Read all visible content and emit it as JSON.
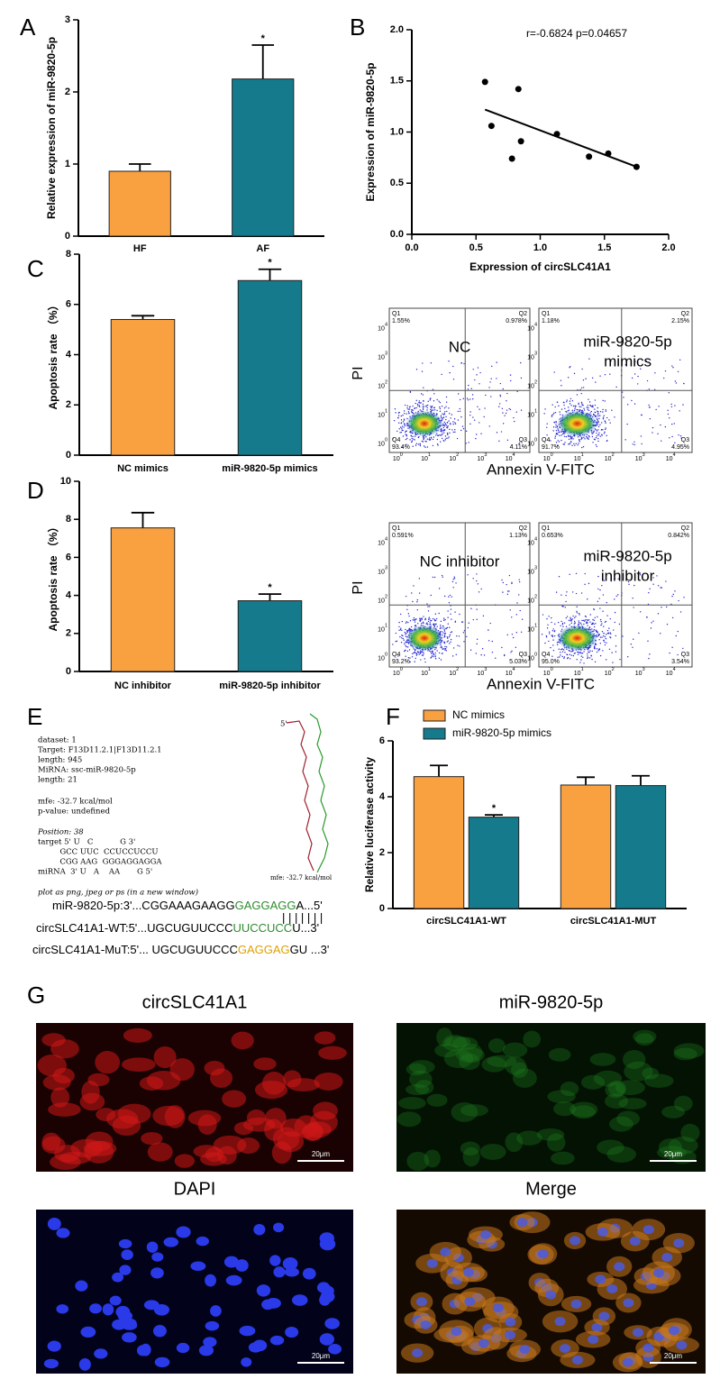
{
  "chart_data": [
    {
      "type": "bar",
      "y_label": "Relative expression of miR-9820-5p",
      "categories": [
        "HF",
        "AF"
      ],
      "values": [
        0.9,
        2.18
      ],
      "errors": [
        0.1,
        0.47
      ],
      "value_annotations": [
        null,
        "*"
      ],
      "colors": [
        "#f9a040",
        "#157a8b"
      ],
      "ylim": [
        0,
        3
      ],
      "yticks": [
        0,
        1,
        2,
        3
      ]
    },
    {
      "type": "scatter",
      "annotation": "r=-0.6824 p=0.04657",
      "x_label": "Expression of circSLC41A1",
      "y_label": "Expression of miR-9820-5p",
      "x": [
        0.57,
        0.62,
        0.78,
        0.83,
        0.85,
        1.13,
        1.38,
        1.53,
        1.75
      ],
      "y": [
        1.49,
        1.06,
        0.74,
        1.42,
        0.91,
        0.98,
        0.76,
        0.79,
        0.66
      ],
      "color": "#000000",
      "trend_line": {
        "x": [
          0.57,
          1.75
        ],
        "y": [
          1.22,
          0.66
        ]
      },
      "xlim": [
        0,
        2
      ],
      "xticks": [
        {
          "value": 0,
          "label": "0.0"
        },
        0.5,
        {
          "value": 1,
          "label": "1.0"
        },
        1.5,
        {
          "value": 2,
          "label": "2.0"
        }
      ],
      "ylim": [
        0,
        2
      ],
      "yticks": [
        {
          "value": 0,
          "label": "0.0"
        },
        0.5,
        {
          "value": 1,
          "label": "1.0"
        },
        1.5,
        {
          "value": 2,
          "label": "2.0"
        }
      ]
    },
    {
      "type": "bar",
      "y_label": "Apoptosis rate （%）",
      "categories": [
        "NC mimics",
        "miR-9820-5p mimics"
      ],
      "values": [
        5.4,
        6.95
      ],
      "errors": [
        0.15,
        0.45
      ],
      "value_annotations": [
        null,
        "*"
      ],
      "colors": [
        "#f9a040",
        "#157a8b"
      ],
      "ylim": [
        0,
        8
      ],
      "yticks": [
        0,
        2,
        4,
        6,
        8
      ]
    },
    {
      "type": "bar",
      "y_label": "Apoptosis rate （%）",
      "categories": [
        "NC inhibitor",
        "miR-9820-5p inhibitor"
      ],
      "values": [
        7.55,
        3.72
      ],
      "errors": [
        0.8,
        0.35
      ],
      "value_annotations": [
        null,
        "*"
      ],
      "colors": [
        "#f9a040",
        "#157a8b"
      ],
      "ylim": [
        0,
        10
      ],
      "yticks": [
        0,
        2,
        4,
        6,
        8,
        10
      ]
    },
    {
      "type": "bar",
      "y_label": "Relative luciferase activity",
      "categories": [
        "circSLC41A1-WT",
        "circSLC41A1-MUT"
      ],
      "legend": "top-left",
      "series": [
        {
          "name": "NC mimics",
          "color": "#f9a040",
          "values": [
            4.72,
            4.42
          ],
          "errors": [
            0.4,
            0.28
          ]
        },
        {
          "name": "miR-9820-5p mimics",
          "color": "#157a8b",
          "values": [
            3.27,
            4.4
          ],
          "errors": [
            0.08,
            0.35
          ],
          "value_annotations": [
            "*",
            null
          ]
        }
      ],
      "ylim": [
        0,
        6
      ],
      "yticks": [
        0,
        2,
        4,
        6
      ]
    }
  ],
  "panel_labels": [
    "A",
    "B",
    "C",
    "D",
    "E",
    "F",
    "G"
  ],
  "flow_cytometry": [
    {
      "x_label": "Annexin V-FITC",
      "y_label": "PI",
      "tick_base": "10",
      "tick_exponents": [
        0,
        1,
        2,
        3,
        4
      ],
      "plots": [
        {
          "label": [
            "NC"
          ],
          "quadrants": [
            [
              "Q1",
              "1.55%"
            ],
            [
              "Q2",
              "0.978%"
            ],
            [
              "Q3",
              "4.11%"
            ],
            [
              "Q4",
              "93.4%"
            ]
          ]
        },
        {
          "label": [
            "miR-9820-5p",
            "mimics"
          ],
          "quadrants": [
            [
              "Q1",
              "1.18%"
            ],
            [
              "Q2",
              "2.15%"
            ],
            [
              "Q3",
              "4.95%"
            ],
            [
              "Q4",
              "91.7%"
            ]
          ]
        }
      ]
    },
    {
      "x_label": "Annexin V-FITC",
      "y_label": "PI",
      "tick_base": "10",
      "tick_exponents": [
        0,
        1,
        2,
        3,
        4
      ],
      "plots": [
        {
          "label": [
            "NC inhibitor"
          ],
          "quadrants": [
            [
              "Q1",
              "0.591%"
            ],
            [
              "Q2",
              "1.13%"
            ],
            [
              "Q3",
              "5.03%"
            ],
            [
              "Q4",
              "93.2%"
            ]
          ]
        },
        {
          "label": [
            "miR-9820-5p",
            "inhibitor"
          ],
          "quadrants": [
            [
              "Q1",
              "0.653%"
            ],
            [
              "Q2",
              "0.842%"
            ],
            [
              "Q3",
              "3.54%"
            ],
            [
              "Q4",
              "95.0%"
            ]
          ]
        }
      ]
    }
  ],
  "sequence_panel": {
    "info_lines": [
      "dataset: 1",
      "Target: F13D11.2.1|F13D11.2.1",
      "length: 945",
      "MiRNA: ssc-miR-9820-5p",
      "length: 21",
      "mfe: -32.7 kcal/mol",
      "p-value: undefined",
      "Position: 38",
      "target 5' U   C           G 3'",
      "         GCC UUC  CCUCCUCCU",
      "         CGG AAG  GGGAGGAGGA",
      "miRNA  3' U   A    AA       G 5'",
      "plot as png, jpeg or ps (in a new window)"
    ],
    "structure_end": "5'",
    "structure_mfe": "mfe: -32.7 kcal/mol",
    "rows": [
      [
        {
          "text": "miR-9820-5p:3'...CGGAAAGAAGG"
        },
        {
          "text": "GAGGAGG",
          "color": "#2e8b2e"
        },
        {
          "text": "A...5'"
        }
      ],
      [
        {
          "text": "circSLC41A1-WT:5'...UGCUGUUCCC"
        },
        {
          "text": "UUCCUCC",
          "color": "#2e8b2e"
        },
        {
          "text": "U...3'"
        }
      ],
      [
        {
          "text": "circSLC41A1-MuT:5'... UGCUGUUCCC"
        },
        {
          "text": "GAGGAG",
          "color": "#e0a000"
        },
        {
          "text": "GU ...3'"
        }
      ]
    ],
    "pairing": "|||||||"
  },
  "microscopy": [
    {
      "title": "circSLC41A1",
      "scale_bar": "20μm"
    },
    {
      "title": "miR-9820-5p",
      "scale_bar": "20μm"
    },
    {
      "title": "DAPI",
      "scale_bar": "20μm"
    },
    {
      "title": "Merge",
      "scale_bar": "20μm"
    }
  ]
}
